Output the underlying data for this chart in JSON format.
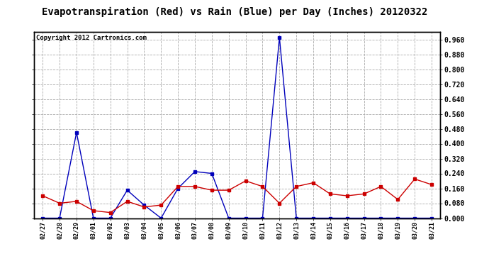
{
  "title": "Evapotranspiration (Red) vs Rain (Blue) per Day (Inches) 20120322",
  "copyright": "Copyright 2012 Cartronics.com",
  "dates": [
    "02/27",
    "02/28",
    "02/29",
    "03/01",
    "03/02",
    "03/03",
    "03/04",
    "03/05",
    "03/06",
    "03/07",
    "03/08",
    "03/09",
    "03/10",
    "03/11",
    "03/12",
    "03/13",
    "03/14",
    "03/15",
    "03/16",
    "03/17",
    "03/18",
    "03/19",
    "03/20",
    "03/21"
  ],
  "rain_blue": [
    0.0,
    0.0,
    0.46,
    0.0,
    0.0,
    0.15,
    0.07,
    0.0,
    0.16,
    0.25,
    0.24,
    0.0,
    0.0,
    0.0,
    0.97,
    0.0,
    0.0,
    0.0,
    0.0,
    0.0,
    0.0,
    0.0,
    0.0,
    0.0
  ],
  "et_red": [
    0.12,
    0.08,
    0.09,
    0.04,
    0.03,
    0.09,
    0.06,
    0.07,
    0.17,
    0.17,
    0.15,
    0.15,
    0.2,
    0.17,
    0.08,
    0.17,
    0.19,
    0.13,
    0.12,
    0.13,
    0.17,
    0.1,
    0.21,
    0.18
  ],
  "blue_color": "#0000bb",
  "red_color": "#cc0000",
  "bg_color": "#ffffff",
  "grid_color": "#aaaaaa",
  "ylim": [
    0.0,
    1.0
  ],
  "yticks": [
    0.0,
    0.08,
    0.16,
    0.24,
    0.32,
    0.4,
    0.48,
    0.56,
    0.64,
    0.72,
    0.8,
    0.88,
    0.96
  ],
  "title_fontsize": 10,
  "copyright_fontsize": 6.5
}
